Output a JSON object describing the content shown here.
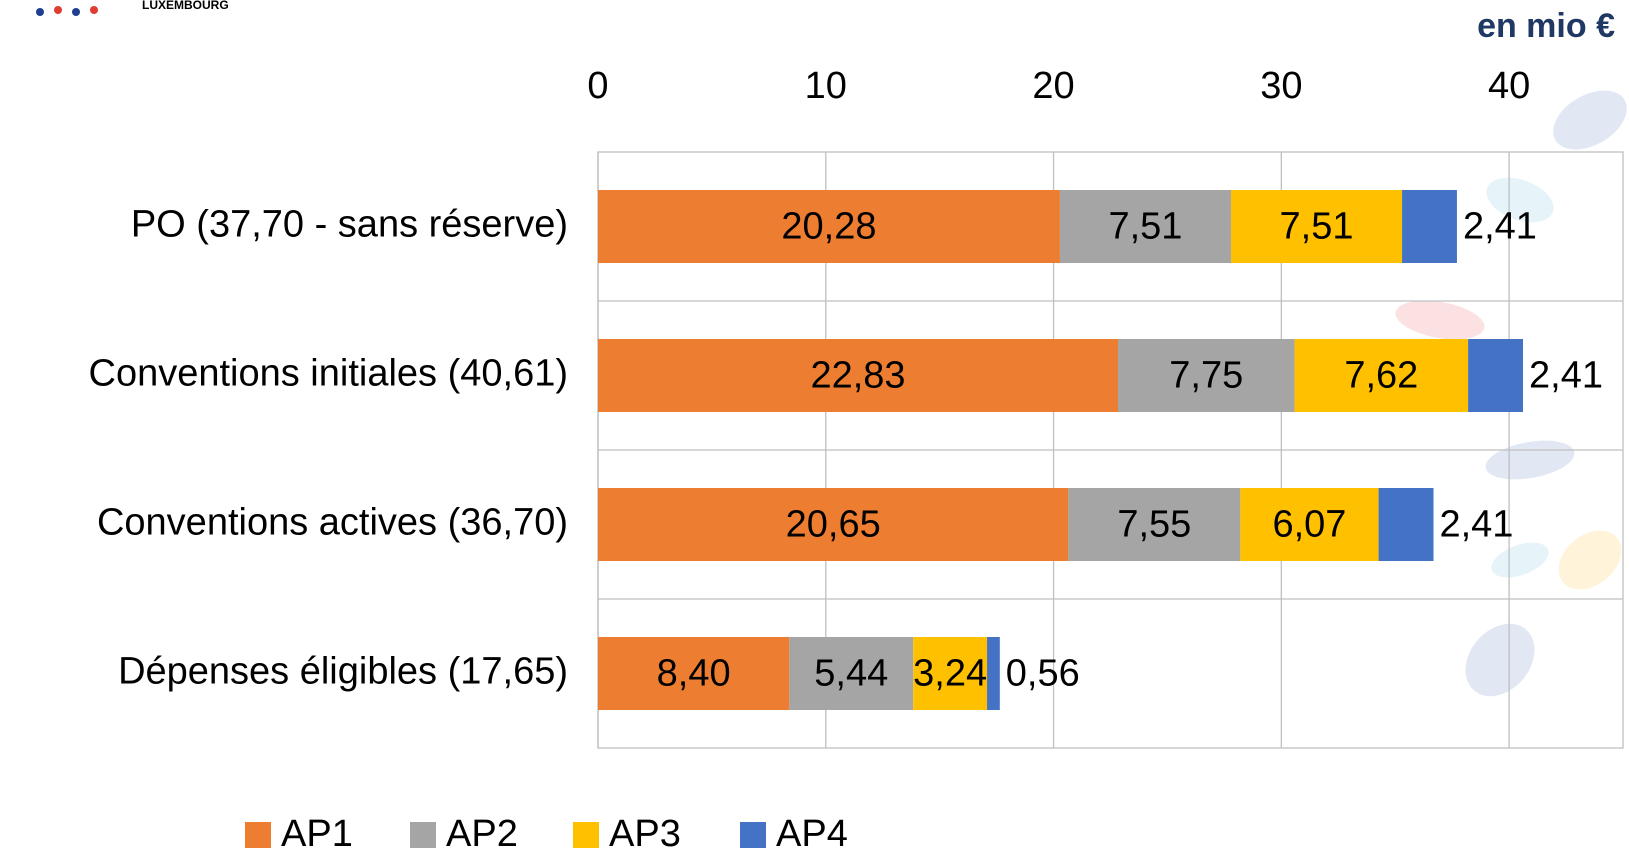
{
  "chart_data": {
    "type": "stacked_barh",
    "logo_text": "LUXEMBOURG",
    "unit_label": "en mio €",
    "categories": [
      "PO (37,70 - sans réserve)",
      "Conventions initiales (40,61)",
      "Conventions actives (36,70)",
      "Dépenses éligibles (17,65)"
    ],
    "series": [
      {
        "name": "AP1",
        "color": "#ED7D31",
        "values": [
          20.28,
          22.83,
          20.65,
          8.4
        ],
        "value_labels": [
          "20,28",
          "22,83",
          "20,65",
          "8,40"
        ]
      },
      {
        "name": "AP2",
        "color": "#A5A5A5",
        "values": [
          7.51,
          7.75,
          7.55,
          5.44
        ],
        "value_labels": [
          "7,51",
          "7,75",
          "7,55",
          "5,44"
        ]
      },
      {
        "name": "AP3",
        "color": "#FFC000",
        "values": [
          7.51,
          7.62,
          6.07,
          3.24
        ],
        "value_labels": [
          "7,51",
          "7,62",
          "6,07",
          "3,24"
        ]
      },
      {
        "name": "AP4",
        "color": "#4472C4",
        "values": [
          2.41,
          2.41,
          2.41,
          0.56
        ],
        "value_labels": [
          "2,41",
          "2,41",
          "2,41",
          "0,56"
        ]
      }
    ],
    "xlim": [
      0,
      45
    ],
    "xticks": [
      0,
      10,
      20,
      30,
      40
    ],
    "grid": true
  }
}
